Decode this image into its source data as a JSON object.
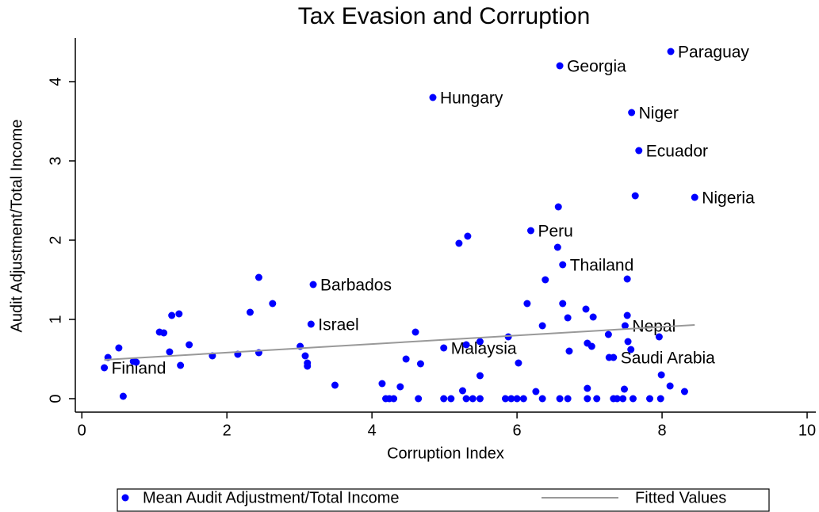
{
  "chart_data": {
    "type": "scatter",
    "title": "Tax Evasion and Corruption",
    "x_label": "Corruption Index",
    "y_label": "Audit Adjustment/Total Income",
    "xlim": [
      -0.09,
      10.12
    ],
    "ylim": [
      -0.17,
      4.55
    ],
    "xticks": [
      0,
      2,
      4,
      6,
      8,
      10
    ],
    "yticks": [
      0,
      1,
      2,
      3,
      4
    ],
    "series": [
      {
        "name": "Mean Audit Adjustment/Total Income",
        "type": "scatter",
        "color": "#0000ff",
        "x": [
          8.12,
          6.59,
          4.84,
          7.58,
          7.68,
          8.45,
          6.19,
          6.63,
          3.19,
          3.16,
          7.49,
          4.99,
          7.33,
          0.31,
          0.36,
          0.51,
          0.57,
          0.71,
          0.75,
          1.07,
          1.13,
          1.21,
          1.24,
          1.34,
          1.36,
          1.48,
          1.8,
          2.15,
          2.32,
          2.44,
          2.44,
          2.63,
          3.01,
          3.08,
          3.11,
          3.11,
          3.49,
          4.14,
          4.19,
          4.24,
          4.3,
          4.39,
          4.47,
          4.6,
          4.64,
          4.67,
          4.99,
          5.09,
          5.2,
          5.25,
          5.32,
          5.3,
          5.3,
          5.39,
          5.49,
          5.49,
          5.49,
          5.88,
          5.84,
          5.92,
          6,
          6.09,
          6.02,
          6.14,
          6.26,
          6.35,
          6.35,
          6.39,
          6.57,
          6.56,
          6.59,
          6.63,
          6.7,
          6.72,
          6.7,
          6.95,
          6.97,
          6.97,
          6.97,
          7.1,
          7.03,
          7.05,
          7.26,
          7.27,
          7.33,
          7.38,
          7.48,
          7.52,
          7.52,
          7.53,
          7.57,
          7.46,
          7.6,
          7.63,
          7.83,
          7.96,
          7.99,
          7.98,
          8.11,
          8.31
        ],
        "values": [
          4.38,
          4.2,
          3.8,
          3.61,
          3.13,
          2.54,
          2.12,
          1.69,
          1.44,
          0.94,
          0.92,
          0.64,
          0.52,
          0.39,
          0.52,
          0.64,
          0.03,
          0.47,
          0.46,
          0.84,
          0.83,
          0.59,
          1.05,
          1.07,
          0.42,
          0.68,
          0.54,
          0.56,
          1.09,
          1.53,
          0.58,
          1.2,
          0.66,
          0.54,
          0.45,
          0.41,
          0.17,
          0.19,
          0,
          0,
          0,
          0.15,
          0.5,
          0.84,
          0,
          0.44,
          0,
          0,
          1.96,
          0.1,
          2.05,
          0.68,
          0,
          0,
          0.72,
          0.29,
          0,
          0.78,
          0,
          0,
          0,
          0,
          0.45,
          1.2,
          0.09,
          0,
          0.92,
          1.5,
          2.42,
          1.91,
          0,
          1.2,
          1.02,
          0.6,
          0,
          1.13,
          0.13,
          0.7,
          0,
          0,
          0.66,
          1.03,
          0.81,
          0.52,
          0,
          0,
          0.12,
          1.05,
          1.51,
          0.72,
          0.62,
          0,
          0,
          2.56,
          0,
          0.78,
          0.3,
          0,
          0.16,
          0.09
        ],
        "labels": [
          "Paraguay",
          "Georgia",
          "Hungary",
          "Niger",
          "Ecuador",
          "Nigeria",
          "Peru",
          "Thailand",
          "Barbados",
          "Israel",
          "Nepal",
          "Malaysia",
          "Saudi Arabia",
          "Finland",
          null,
          null,
          null,
          null,
          null,
          null,
          null,
          null,
          null,
          null,
          null,
          null,
          null,
          null,
          null,
          null,
          null,
          null,
          null,
          null,
          null,
          null,
          null,
          null,
          null,
          null,
          null,
          null,
          null,
          null,
          null,
          null,
          null,
          null,
          null,
          null,
          null,
          null,
          null,
          null,
          null,
          null,
          null,
          null,
          null,
          null,
          null,
          null,
          null,
          null,
          null,
          null,
          null,
          null,
          null,
          null,
          null,
          null,
          null,
          null,
          null,
          null,
          null,
          null,
          null,
          null,
          null,
          null,
          null,
          null,
          null,
          null,
          null,
          null,
          null,
          null,
          null,
          null,
          null,
          null,
          null,
          null,
          null,
          null,
          null,
          null
        ]
      },
      {
        "name": "Fitted Values",
        "type": "line",
        "color": "#999999",
        "x": [
          0.31,
          8.45
        ],
        "values": [
          0.49,
          0.93
        ]
      }
    ]
  }
}
